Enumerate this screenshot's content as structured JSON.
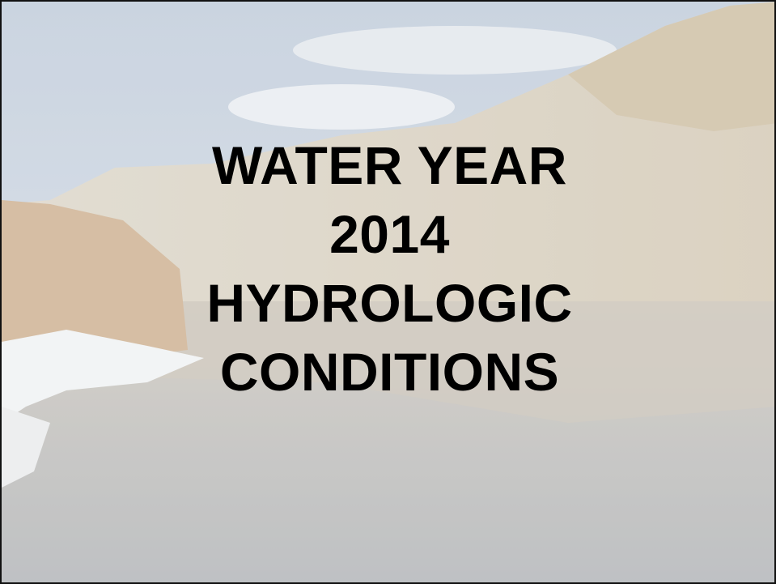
{
  "slide": {
    "title_lines": [
      "WATER YEAR",
      "2014",
      "HYDROLOGIC",
      "CONDITIONS"
    ]
  }
}
